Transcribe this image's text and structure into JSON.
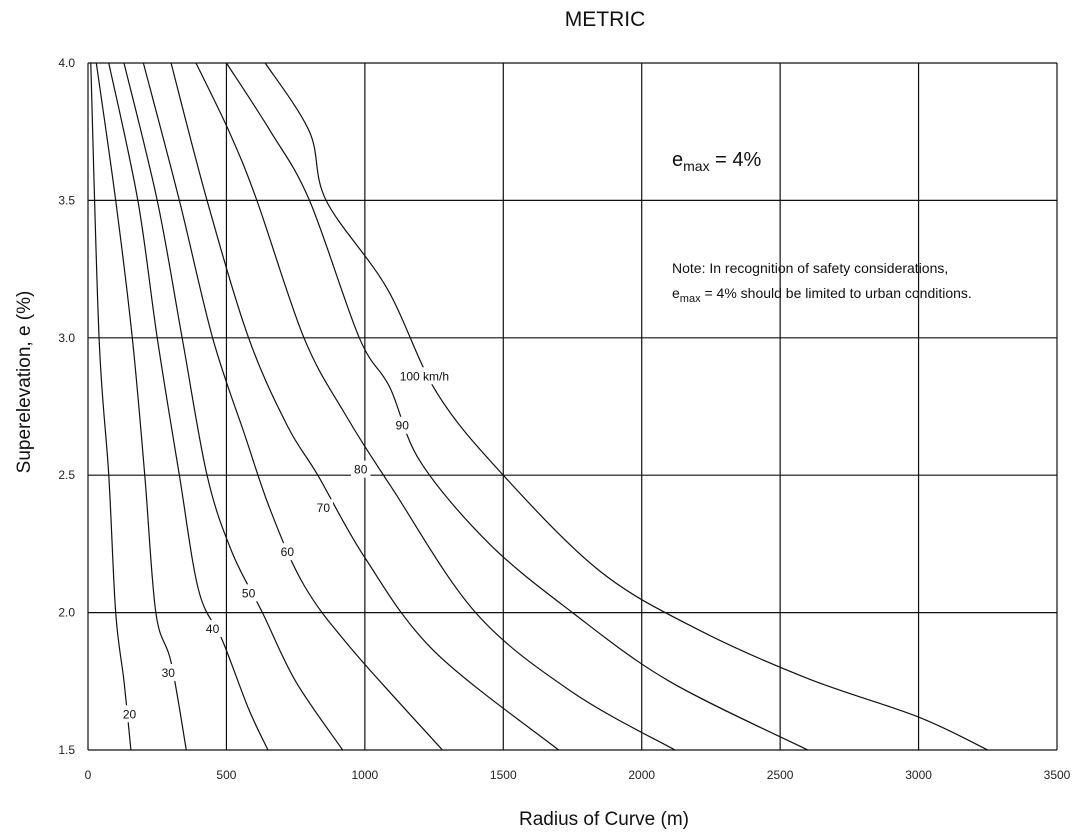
{
  "chart_data": {
    "type": "line",
    "title": "METRIC",
    "xlabel": "Radius of Curve (m)",
    "ylabel": "Superelevation, e (%)",
    "xlim": [
      0,
      3500
    ],
    "ylim": [
      1.5,
      4.0
    ],
    "x_ticks": [
      0,
      500,
      1000,
      1500,
      2000,
      2500,
      3000,
      3500
    ],
    "x_tick_labels": [
      "0",
      "500",
      "1000",
      "1500",
      "2000",
      "2500",
      "3000",
      "3500"
    ],
    "y_ticks": [
      1.5,
      2.0,
      2.5,
      3.0,
      3.5,
      4.0
    ],
    "y_tick_labels": [
      "1.5",
      "2.0",
      "2.5",
      "3.0",
      "3.5",
      "4.0"
    ],
    "grid": true,
    "annotation_emax": {
      "base": "e",
      "sub": "max",
      "rest": " = 4%"
    },
    "note_line1": "Note: In recognition of safety considerations,",
    "note_line2": {
      "base": "e",
      "sub": "max",
      "rest": " = 4% should be limited to urban conditions."
    },
    "series": [
      {
        "label": "20",
        "label_at": [
          150,
          1.63
        ],
        "points": [
          [
            10,
            4.0
          ],
          [
            40,
            3.0
          ],
          [
            75,
            2.5
          ],
          [
            100,
            2.0
          ],
          [
            130,
            1.75
          ],
          [
            155,
            1.5
          ]
        ]
      },
      {
        "label": "30",
        "label_at": [
          290,
          1.78
        ],
        "points": [
          [
            30,
            4.0
          ],
          [
            100,
            3.5
          ],
          [
            160,
            3.0
          ],
          [
            205,
            2.5
          ],
          [
            245,
            2.0
          ],
          [
            300,
            1.82
          ],
          [
            355,
            1.5
          ]
        ]
      },
      {
        "label": "40",
        "label_at": [
          450,
          1.94
        ],
        "points": [
          [
            75,
            4.0
          ],
          [
            180,
            3.5
          ],
          [
            250,
            3.0
          ],
          [
            330,
            2.5
          ],
          [
            400,
            2.08
          ],
          [
            485,
            1.9
          ],
          [
            580,
            1.65
          ],
          [
            650,
            1.5
          ]
        ]
      },
      {
        "label": "50",
        "label_at": [
          580,
          2.07
        ],
        "points": [
          [
            130,
            4.0
          ],
          [
            250,
            3.5
          ],
          [
            340,
            3.0
          ],
          [
            430,
            2.5
          ],
          [
            520,
            2.22
          ],
          [
            630,
            2.0
          ],
          [
            750,
            1.75
          ],
          [
            920,
            1.5
          ]
        ]
      },
      {
        "label": "60",
        "label_at": [
          720,
          2.22
        ],
        "points": [
          [
            200,
            4.0
          ],
          [
            330,
            3.5
          ],
          [
            450,
            3.0
          ],
          [
            565,
            2.65
          ],
          [
            660,
            2.37
          ],
          [
            780,
            2.1
          ],
          [
            950,
            1.87
          ],
          [
            1280,
            1.5
          ]
        ]
      },
      {
        "label": "70",
        "label_at": [
          850,
          2.38
        ],
        "points": [
          [
            300,
            4.0
          ],
          [
            430,
            3.5
          ],
          [
            580,
            3.0
          ],
          [
            720,
            2.68
          ],
          [
            830,
            2.5
          ],
          [
            1000,
            2.2
          ],
          [
            1250,
            1.86
          ],
          [
            1700,
            1.5
          ]
        ]
      },
      {
        "label": "80",
        "label_at": [
          985,
          2.52
        ],
        "points": [
          [
            390,
            4.0
          ],
          [
            510,
            3.75
          ],
          [
            610,
            3.5
          ],
          [
            780,
            3.0
          ],
          [
            930,
            2.72
          ],
          [
            1100,
            2.45
          ],
          [
            1400,
            2.0
          ],
          [
            1750,
            1.71
          ],
          [
            2120,
            1.5
          ]
        ]
      },
      {
        "label": "90",
        "label_at": [
          1135,
          2.68
        ],
        "points": [
          [
            500,
            4.0
          ],
          [
            660,
            3.75
          ],
          [
            800,
            3.5
          ],
          [
            980,
            3.0
          ],
          [
            1090,
            2.82
          ],
          [
            1200,
            2.55
          ],
          [
            1450,
            2.25
          ],
          [
            1750,
            2.0
          ],
          [
            2100,
            1.75
          ],
          [
            2600,
            1.5
          ]
        ]
      },
      {
        "label": "100 km/h",
        "label_at": [
          1215,
          2.86
        ],
        "points": [
          [
            640,
            4.0
          ],
          [
            800,
            3.75
          ],
          [
            860,
            3.5
          ],
          [
            1080,
            3.18
          ],
          [
            1260,
            2.8
          ],
          [
            1500,
            2.5
          ],
          [
            1850,
            2.15
          ],
          [
            2200,
            1.94
          ],
          [
            2600,
            1.76
          ],
          [
            3000,
            1.62
          ],
          [
            3250,
            1.5
          ]
        ]
      }
    ]
  }
}
